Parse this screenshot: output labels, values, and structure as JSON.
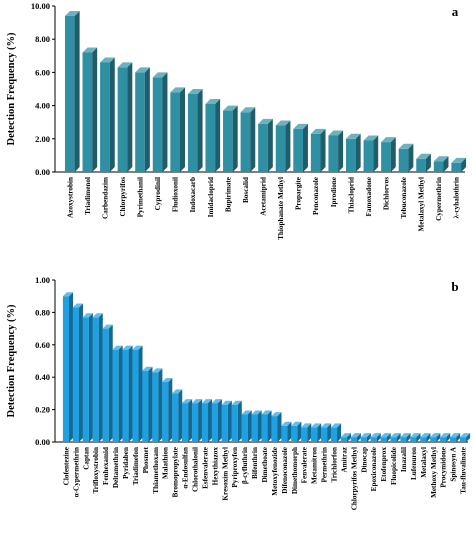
{
  "chart_data": [
    {
      "type": "bar",
      "panel_label": "a",
      "ylabel": "Detection Frequency (%)",
      "ylim": [
        0,
        10
      ],
      "yticks": [
        "0.00",
        "2.00",
        "4.00",
        "6.00",
        "8.00",
        "10.00"
      ],
      "grid": false,
      "bar_color": "#2f8fa3",
      "categories": [
        "Azoxystrobin",
        "Triadimenol",
        "Carbendazim",
        "Chlorpyrifos",
        "Pyrimethanil",
        "Cyprodinil",
        "Fludioxonil",
        "Indoxacarb",
        "Imidacloprid",
        "Bupirimate",
        "Boscalid",
        "Acetamiprid",
        "Thiophanate Methyl",
        "Propargite",
        "Penconazole",
        "Iprodione",
        "Thiacloprid",
        "Famoxadone",
        "Dichlorvos",
        "Tebuconazole",
        "Metalaxyl Methyl",
        "Cypermethrin",
        "λ-cyhalothrin"
      ],
      "values": [
        9.4,
        7.2,
        6.6,
        6.3,
        6.0,
        5.7,
        4.8,
        4.7,
        4.1,
        3.7,
        3.6,
        2.9,
        2.8,
        2.6,
        2.3,
        2.2,
        2.0,
        1.9,
        1.8,
        1.4,
        0.8,
        0.65,
        0.55
      ]
    },
    {
      "type": "bar",
      "panel_label": "b",
      "ylabel": "Detection Frequency (%)",
      "ylim": [
        0,
        1
      ],
      "yticks": [
        "0.00",
        "0.20",
        "0.40",
        "0.60",
        "0.80",
        "1.00"
      ],
      "grid": false,
      "bar_color": "#1fa0e0",
      "categories": [
        "Clofentezine",
        "α-Cypermethrin",
        "Captan",
        "Trifloxystrobin",
        "Fenhexamid",
        "Deltamethrin",
        "Pyridaben",
        "Triadimefon",
        "Phosmet",
        "Thiamethoxam",
        "Malathion",
        "Bromopropylate",
        "α-Endosulfan",
        "Chlorothalonil",
        "Esfenvalerate",
        "Hexythiazox",
        "Kresoxim Methyl",
        "Pyriproxyfen",
        "β-cyfluthrin",
        "Bifenthrin",
        "Dimethoate",
        "Metoxyfenozide",
        "Difenoconazole",
        "Dimethomorph",
        "Fenvalerate",
        "Metamitron",
        "Permethrin",
        "Trichlorfon",
        "Amitraz",
        "Chlorpyrifos Methyl",
        "Dinocap",
        "Epoxiconazole",
        "Etofenprox",
        "Fluopicolide",
        "Imazalil",
        "Lufenuron",
        "Metalaxyl",
        "Methoxy Methyl",
        "Procymidone",
        "Spinosyn A",
        "Tau-fluvalinate"
      ],
      "values": [
        0.9,
        0.83,
        0.77,
        0.77,
        0.7,
        0.57,
        0.57,
        0.57,
        0.44,
        0.43,
        0.37,
        0.3,
        0.24,
        0.24,
        0.24,
        0.24,
        0.23,
        0.23,
        0.17,
        0.17,
        0.17,
        0.16,
        0.1,
        0.1,
        0.09,
        0.09,
        0.09,
        0.09,
        0.03,
        0.03,
        0.03,
        0.03,
        0.03,
        0.03,
        0.03,
        0.03,
        0.03,
        0.03,
        0.03,
        0.03,
        0.03
      ]
    }
  ]
}
